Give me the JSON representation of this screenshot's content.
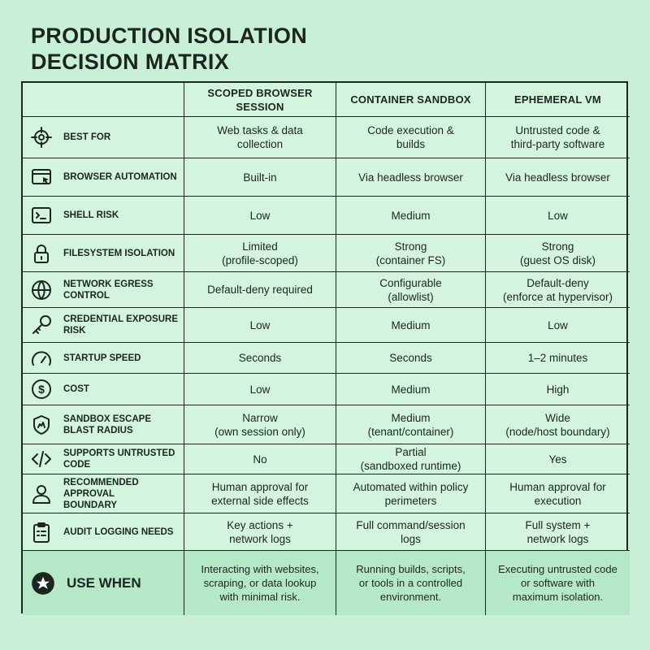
{
  "title": "PRODUCTION ISOLATION\nDECISION MATRIX",
  "table": {
    "columns": [
      "SCOPED BROWSER SESSION",
      "CONTAINER SANDBOX",
      "EPHEMERAL VM"
    ],
    "rows": [
      {
        "label": "BEST FOR",
        "cells": [
          "Web tasks & data\ncollection",
          "Code execution &\nbuilds",
          "Untrusted code &\nthird-party software"
        ]
      },
      {
        "label": "BROWSER AUTOMATION",
        "cells": [
          "Built-in",
          "Via headless browser",
          "Via headless browser"
        ]
      },
      {
        "label": "SHELL RISK",
        "cells": [
          "Low",
          "Medium",
          "Low"
        ]
      },
      {
        "label": "FILESYSTEM ISOLATION",
        "cells": [
          "Limited\n(profile-scoped)",
          "Strong\n(container FS)",
          "Strong\n(guest OS disk)"
        ]
      },
      {
        "label": "NETWORK EGRESS CONTROL",
        "cells": [
          "Default-deny required",
          "Configurable\n(allowlist)",
          "Default-deny\n(enforce at hypervisor)"
        ]
      },
      {
        "label": "CREDENTIAL EXPOSURE RISK",
        "cells": [
          "Low",
          "Medium",
          "Low"
        ]
      },
      {
        "label": "STARTUP SPEED",
        "cells": [
          "Seconds",
          "Seconds",
          "1–2 minutes"
        ]
      },
      {
        "label": "COST",
        "cells": [
          "Low",
          "Medium",
          "High"
        ]
      },
      {
        "label": "SANDBOX ESCAPE\nBLAST RADIUS",
        "cells": [
          "Narrow\n(own session only)",
          "Medium\n(tenant/container)",
          "Wide\n(node/host boundary)"
        ]
      },
      {
        "label": "SUPPORTS UNTRUSTED CODE",
        "cells": [
          "No",
          "Partial\n(sandboxed runtime)",
          "Yes"
        ]
      },
      {
        "label": "RECOMMENDED APPROVAL\nBOUNDARY",
        "cells": [
          "Human approval for\nexternal side effects",
          "Automated within policy\nperimeters",
          "Human approval for\nexecution"
        ]
      },
      {
        "label": "AUDIT LOGGING NEEDS",
        "cells": [
          "Key actions +\nnetwork logs",
          "Full command/session\nlogs",
          "Full system +\nnetwork logs"
        ]
      },
      {
        "label": "USE WHEN",
        "cells": [
          "Interacting with websites,\nscraping, or data lookup\nwith minimal risk.",
          "Running builds, scripts,\nor tools in a controlled\nenvironment.",
          "Executing untrusted code\nor software with\nmaximum isolation."
        ]
      }
    ]
  }
}
